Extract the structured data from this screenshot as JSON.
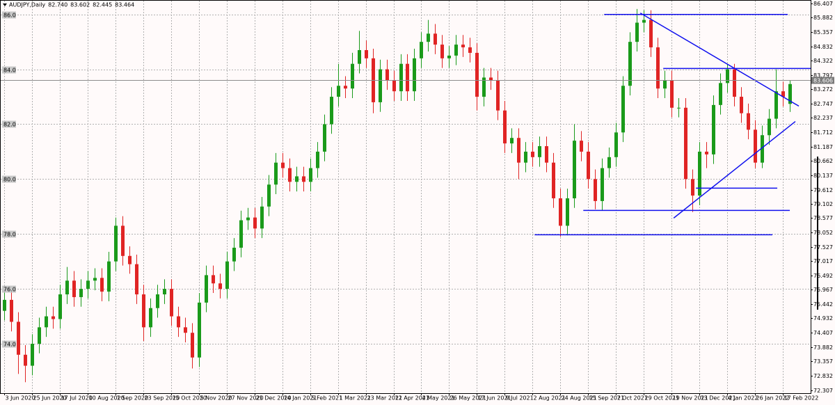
{
  "chart_data": {
    "type": "candlestick",
    "title": "AUDJPY,Daily",
    "header_values": [
      {
        "value": 82.74,
        "label": "82.740"
      },
      83.602,
      82.445,
      83.464
    ],
    "up_color": "#1a9a1a",
    "down_color": "#e02424",
    "line_color": "#1010ee",
    "grid": true,
    "xlim": [
      -0.5,
      116
    ],
    "ylim": [
      72.2,
      86.5
    ],
    "xticks": [
      {
        "value": 0,
        "label": "3 Jun 2020"
      },
      {
        "value": 4,
        "label": "25 Jun 2020"
      },
      {
        "value": 8,
        "label": "17 Jul 2020"
      },
      {
        "value": 12,
        "label": "10 Aug 2020"
      },
      {
        "value": 16,
        "label": "1 Sep 2020"
      },
      {
        "value": 20,
        "label": "23 Sep 2020"
      },
      {
        "value": 24,
        "label": "15 Oct 2020"
      },
      {
        "value": 28,
        "label": "5 Nov 2020"
      },
      {
        "value": 32,
        "label": "27 Nov 2020"
      },
      {
        "value": 36,
        "label": "21 Dec 2020"
      },
      {
        "value": 40,
        "label": "14 Jan 2021"
      },
      {
        "value": 44,
        "label": "5 Feb 2021"
      },
      {
        "value": 48,
        "label": "1 Mar 2021"
      },
      {
        "value": 52,
        "label": "23 Mar 2021"
      },
      {
        "value": 56,
        "label": "12 Apr 2021"
      },
      {
        "value": 60,
        "label": "4 May 2021"
      },
      {
        "value": 64,
        "label": "26 May 2021"
      },
      {
        "value": 68,
        "label": "17 Jun 2021"
      },
      {
        "value": 72,
        "label": "9 Jul 2021"
      },
      {
        "value": 76,
        "label": "2 Aug 2021"
      },
      {
        "value": 80,
        "label": "24 Aug 2021"
      },
      {
        "value": 84,
        "label": "15 Sep 2021"
      },
      {
        "value": 88,
        "label": "7 Oct 2021"
      },
      {
        "value": 92,
        "label": "29 Oct 2021"
      },
      {
        "value": 96,
        "label": "19 Nov 2021"
      },
      {
        "value": 100,
        "label": "13 Dec 2021"
      },
      {
        "value": 104,
        "label": "4 Jan 2022"
      },
      {
        "value": 108,
        "label": "26 Jan 2022"
      },
      {
        "value": 112,
        "label": "17 Feb 2022"
      }
    ],
    "yticks": [
      86.407,
      85.882,
      85.357,
      84.832,
      84.322,
      83.797,
      83.272,
      82.747,
      82.237,
      81.712,
      81.187,
      80.662,
      80.137,
      79.612,
      79.102,
      78.577,
      78.052,
      77.527,
      77.017,
      76.492,
      75.967,
      75.442,
      74.932,
      74.407,
      73.882,
      73.357,
      72.832,
      72.307
    ],
    "ygrid": [
      {
        "value": 86,
        "label": "86.0"
      },
      {
        "value": 84,
        "label": "84.0"
      },
      {
        "value": 82,
        "label": "82.0"
      },
      {
        "value": 80,
        "label": "80.0"
      },
      {
        "value": 78,
        "label": "78.0"
      },
      {
        "value": 76,
        "label": "76.0"
      },
      {
        "value": 74,
        "label": "74.0"
      }
    ],
    "price_line": 83.606,
    "candles": [
      [
        75.2,
        75.95,
        74.85,
        75.6
      ],
      [
        75.6,
        75.95,
        74.45,
        74.8
      ],
      [
        74.8,
        75.15,
        72.9,
        73.6
      ],
      [
        73.6,
        73.95,
        72.6,
        73.2
      ],
      [
        73.2,
        74.35,
        72.85,
        74.0
      ],
      [
        74.0,
        74.95,
        73.65,
        74.6
      ],
      [
        74.6,
        75.35,
        74.25,
        75.0
      ],
      [
        75.0,
        75.35,
        74.55,
        74.9
      ],
      [
        74.9,
        76.15,
        74.55,
        75.8
      ],
      [
        75.8,
        76.8,
        75.45,
        76.3
      ],
      [
        76.3,
        76.65,
        75.35,
        75.7
      ],
      [
        75.7,
        76.35,
        75.35,
        76.0
      ],
      [
        76.0,
        76.65,
        75.65,
        76.3
      ],
      [
        76.3,
        76.75,
        75.95,
        76.4
      ],
      [
        76.4,
        76.75,
        75.55,
        75.9
      ],
      [
        75.9,
        77.35,
        75.55,
        77.0
      ],
      [
        77.0,
        78.6,
        76.65,
        78.3
      ],
      [
        78.3,
        78.65,
        76.85,
        77.2
      ],
      [
        77.2,
        77.55,
        76.55,
        76.9
      ],
      [
        76.9,
        77.25,
        75.45,
        75.8
      ],
      [
        75.8,
        76.15,
        74.1,
        74.6
      ],
      [
        74.6,
        75.65,
        74.25,
        75.3
      ],
      [
        75.3,
        76.15,
        74.95,
        75.8
      ],
      [
        75.8,
        76.35,
        75.45,
        76.0
      ],
      [
        76.0,
        76.35,
        74.65,
        75.0
      ],
      [
        75.0,
        75.35,
        74.25,
        74.6
      ],
      [
        74.6,
        74.95,
        74.05,
        74.4
      ],
      [
        74.4,
        74.75,
        73.1,
        73.5
      ],
      [
        73.5,
        75.85,
        73.15,
        75.5
      ],
      [
        75.5,
        76.85,
        75.15,
        76.5
      ],
      [
        76.5,
        76.85,
        75.85,
        76.2
      ],
      [
        76.2,
        76.55,
        75.65,
        76.0
      ],
      [
        76.0,
        77.35,
        75.65,
        77.0
      ],
      [
        77.0,
        77.85,
        76.65,
        77.5
      ],
      [
        77.5,
        78.85,
        77.15,
        78.5
      ],
      [
        78.5,
        78.95,
        78.15,
        78.6
      ],
      [
        78.6,
        78.95,
        77.85,
        78.2
      ],
      [
        78.2,
        79.35,
        77.85,
        79.0
      ],
      [
        79.0,
        80.15,
        78.65,
        79.8
      ],
      [
        79.8,
        80.95,
        79.45,
        80.6
      ],
      [
        80.6,
        80.95,
        80.05,
        80.4
      ],
      [
        80.4,
        80.75,
        79.55,
        79.9
      ],
      [
        79.9,
        80.45,
        79.55,
        80.1
      ],
      [
        80.1,
        80.45,
        79.55,
        79.9
      ],
      [
        79.9,
        80.75,
        79.55,
        80.4
      ],
      [
        80.4,
        81.35,
        80.05,
        81.0
      ],
      [
        81.0,
        82.35,
        80.65,
        82.0
      ],
      [
        82.0,
        83.35,
        81.65,
        83.0
      ],
      [
        83.0,
        84.2,
        82.65,
        83.4
      ],
      [
        83.4,
        83.75,
        82.95,
        83.3
      ],
      [
        83.3,
        84.6,
        82.95,
        84.2
      ],
      [
        84.2,
        85.4,
        83.85,
        84.7
      ],
      [
        84.7,
        85.05,
        84.05,
        84.4
      ],
      [
        84.4,
        84.75,
        82.4,
        82.8
      ],
      [
        82.8,
        84.35,
        82.45,
        84.0
      ],
      [
        84.0,
        84.35,
        83.25,
        83.6
      ],
      [
        83.6,
        83.95,
        82.85,
        83.2
      ],
      [
        83.2,
        84.55,
        82.85,
        84.2
      ],
      [
        84.2,
        84.55,
        82.85,
        83.2
      ],
      [
        83.2,
        84.75,
        82.85,
        84.4
      ],
      [
        84.4,
        85.35,
        84.05,
        85.0
      ],
      [
        85.0,
        85.8,
        84.65,
        85.3
      ],
      [
        85.3,
        85.65,
        84.55,
        84.9
      ],
      [
        84.9,
        85.25,
        84.05,
        84.4
      ],
      [
        84.4,
        84.85,
        84.05,
        84.5
      ],
      [
        84.5,
        85.25,
        84.15,
        84.9
      ],
      [
        84.9,
        85.25,
        84.45,
        84.8
      ],
      [
        84.8,
        85.15,
        84.25,
        84.6
      ],
      [
        84.6,
        84.95,
        82.5,
        83.0
      ],
      [
        83.0,
        84.05,
        82.65,
        83.7
      ],
      [
        83.7,
        84.05,
        83.25,
        83.6
      ],
      [
        83.6,
        83.95,
        82.15,
        82.5
      ],
      [
        82.5,
        82.85,
        80.95,
        81.3
      ],
      [
        81.3,
        81.85,
        80.95,
        81.5
      ],
      [
        81.5,
        81.85,
        80.0,
        80.6
      ],
      [
        80.6,
        81.35,
        80.25,
        81.0
      ],
      [
        81.0,
        81.35,
        80.45,
        80.8
      ],
      [
        80.8,
        81.55,
        80.45,
        81.2
      ],
      [
        81.2,
        81.55,
        80.25,
        80.6
      ],
      [
        80.6,
        80.95,
        78.95,
        79.3
      ],
      [
        79.3,
        79.65,
        77.9,
        78.3
      ],
      [
        78.3,
        79.65,
        77.95,
        79.3
      ],
      [
        79.3,
        82.0,
        78.95,
        81.4
      ],
      [
        81.4,
        81.75,
        80.65,
        81.0
      ],
      [
        81.0,
        81.35,
        79.65,
        80.0
      ],
      [
        80.0,
        80.35,
        78.9,
        79.2
      ],
      [
        79.2,
        80.75,
        78.85,
        80.4
      ],
      [
        80.4,
        81.15,
        80.05,
        80.8
      ],
      [
        80.8,
        82.05,
        80.45,
        81.7
      ],
      [
        81.7,
        83.75,
        81.35,
        83.4
      ],
      [
        83.4,
        85.35,
        83.05,
        85.0
      ],
      [
        85.0,
        86.2,
        84.65,
        85.7
      ],
      [
        85.7,
        86.15,
        85.35,
        85.8
      ],
      [
        85.8,
        86.15,
        84.45,
        84.8
      ],
      [
        84.8,
        85.15,
        82.95,
        83.3
      ],
      [
        83.3,
        83.95,
        82.95,
        83.6
      ],
      [
        83.6,
        83.95,
        82.25,
        82.6
      ],
      [
        82.6,
        82.95,
        82.25,
        82.6
      ],
      [
        82.6,
        82.95,
        79.65,
        80.0
      ],
      [
        80.0,
        80.35,
        78.8,
        79.4
      ],
      [
        79.4,
        81.35,
        79.05,
        81.0
      ],
      [
        81.0,
        81.35,
        80.4,
        80.9
      ],
      [
        80.9,
        83.05,
        80.55,
        82.7
      ],
      [
        82.7,
        83.85,
        82.35,
        83.5
      ],
      [
        83.5,
        84.2,
        83.15,
        84.0
      ],
      [
        84.0,
        84.2,
        82.65,
        83.0
      ],
      [
        83.0,
        83.35,
        82.05,
        82.4
      ],
      [
        82.4,
        82.75,
        81.45,
        81.8
      ],
      [
        81.8,
        82.15,
        80.4,
        80.6
      ],
      [
        80.6,
        81.95,
        80.4,
        81.6
      ],
      [
        81.6,
        82.55,
        81.25,
        82.2
      ],
      [
        82.2,
        84.0,
        81.85,
        83.2
      ],
      [
        83.2,
        83.55,
        82.65,
        83.0
      ],
      [
        82.74,
        83.602,
        82.445,
        83.464
      ]
    ],
    "lines": [
      {
        "x": [
          86.3,
          112.7
        ],
        "y": [
          86.0,
          86.0
        ]
      },
      {
        "x": [
          91.5,
          114.3
        ],
        "y": [
          86.05,
          82.66
        ]
      },
      {
        "x": [
          94.8,
          116
        ],
        "y": [
          84.03,
          84.03
        ]
      },
      {
        "x": [
          99.5,
          111.2
        ],
        "y": [
          79.67,
          79.67
        ]
      },
      {
        "x": [
          83.3,
          113
        ],
        "y": [
          78.86,
          78.86
        ]
      },
      {
        "x": [
          76.3,
          110.5
        ],
        "y": [
          77.97,
          77.97
        ]
      },
      {
        "x": [
          96.3,
          113.8
        ],
        "y": [
          78.58,
          82.1
        ]
      }
    ]
  }
}
